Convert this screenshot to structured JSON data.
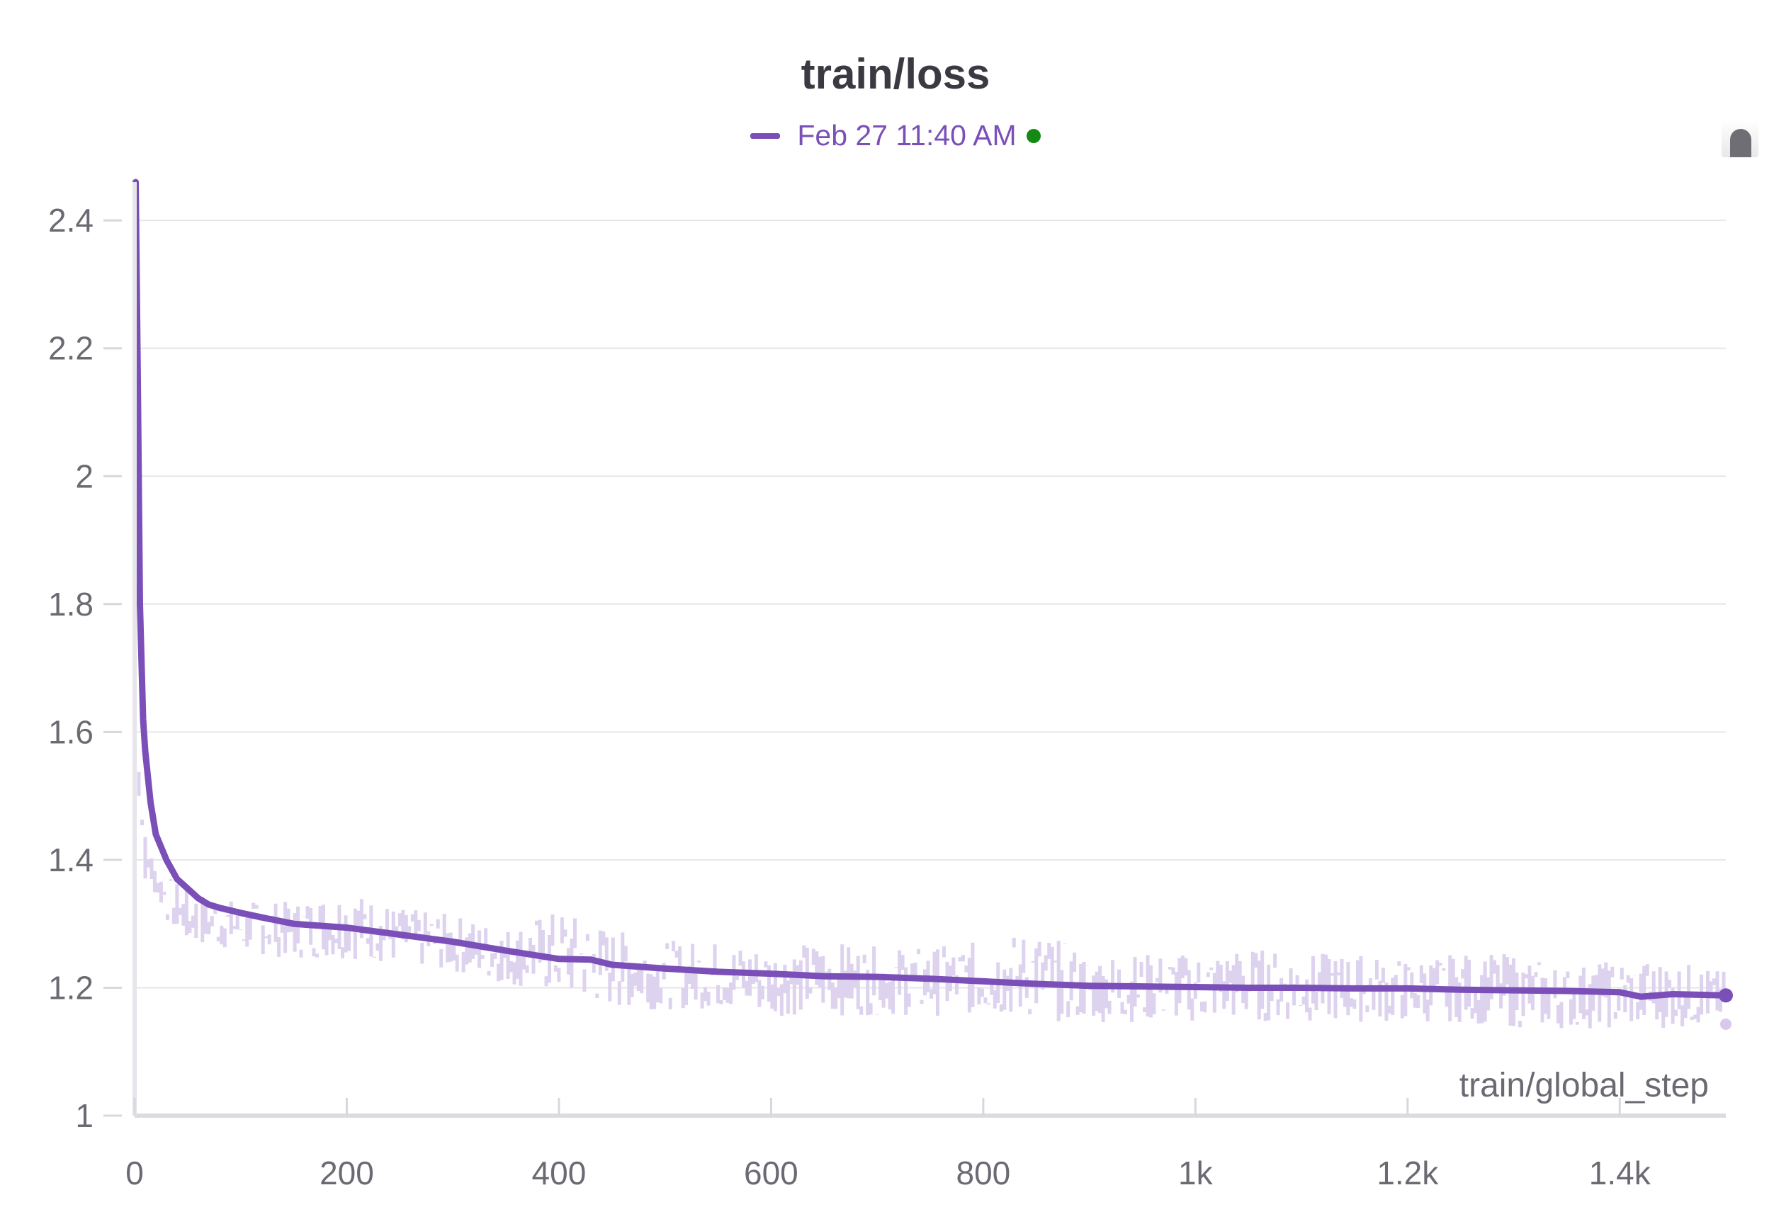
{
  "chart_data": {
    "type": "line",
    "title": "train/loss",
    "xlabel": "train/global_step",
    "ylabel": "",
    "xlim": [
      0,
      1500
    ],
    "ylim": [
      1.0,
      2.46
    ],
    "x_ticks": [
      0,
      200,
      400,
      600,
      800,
      1000,
      1200,
      1400
    ],
    "x_tick_labels": [
      "0",
      "200",
      "400",
      "600",
      "800",
      "1k",
      "1.2k",
      "1.4k"
    ],
    "y_ticks": [
      1.0,
      1.2,
      1.4,
      1.6,
      1.8,
      2.0,
      2.2,
      2.4
    ],
    "y_tick_labels": [
      "1",
      "1.2",
      "1.4",
      "1.6",
      "1.8",
      "2",
      "2.2",
      "2.4"
    ],
    "grid": true,
    "legend": "top-center",
    "series": [
      {
        "name": "Feb 27 11:40 AM",
        "color": "#7b4fb8",
        "raw_color": "#ddd3ee",
        "status_color": "#138a13",
        "smoothed": {
          "x": [
            1,
            3,
            5,
            8,
            10,
            15,
            20,
            25,
            30,
            40,
            50,
            60,
            70,
            80,
            100,
            120,
            150,
            200,
            250,
            300,
            350,
            400,
            430,
            450,
            500,
            550,
            600,
            650,
            700,
            750,
            800,
            850,
            900,
            950,
            1000,
            1050,
            1100,
            1150,
            1200,
            1250,
            1300,
            1350,
            1400,
            1420,
            1450,
            1500
          ],
          "y": [
            2.46,
            2.15,
            1.8,
            1.62,
            1.57,
            1.49,
            1.44,
            1.42,
            1.4,
            1.37,
            1.355,
            1.34,
            1.33,
            1.325,
            1.317,
            1.31,
            1.3,
            1.294,
            1.283,
            1.272,
            1.258,
            1.245,
            1.244,
            1.236,
            1.23,
            1.225,
            1.222,
            1.218,
            1.217,
            1.214,
            1.21,
            1.206,
            1.203,
            1.202,
            1.201,
            1.2,
            1.2,
            1.199,
            1.199,
            1.197,
            1.196,
            1.195,
            1.193,
            1.186,
            1.19,
            1.188
          ]
        },
        "raw_envelope": {
          "x": [
            1,
            5,
            10,
            20,
            30,
            40,
            50,
            70,
            100,
            150,
            200,
            250,
            300,
            350,
            400,
            450,
            500,
            550,
            600,
            650,
            700,
            750,
            800,
            850,
            900,
            950,
            1000,
            1050,
            1100,
            1150,
            1200,
            1250,
            1300,
            1350,
            1400,
            1450,
            1500
          ],
          "low": [
            1.6,
            1.4,
            1.36,
            1.34,
            1.3,
            1.28,
            1.26,
            1.26,
            1.25,
            1.24,
            1.24,
            1.23,
            1.22,
            1.2,
            1.18,
            1.16,
            1.16,
            1.16,
            1.15,
            1.15,
            1.15,
            1.15,
            1.15,
            1.14,
            1.14,
            1.14,
            1.14,
            1.14,
            1.14,
            1.14,
            1.14,
            1.14,
            1.13,
            1.13,
            1.13,
            1.13,
            1.14
          ],
          "high": [
            2.3,
            1.6,
            1.45,
            1.4,
            1.38,
            1.37,
            1.36,
            1.35,
            1.34,
            1.34,
            1.36,
            1.33,
            1.32,
            1.3,
            1.33,
            1.3,
            1.28,
            1.28,
            1.27,
            1.28,
            1.27,
            1.27,
            1.28,
            1.3,
            1.26,
            1.26,
            1.26,
            1.27,
            1.26,
            1.26,
            1.25,
            1.26,
            1.26,
            1.24,
            1.25,
            1.25,
            1.23
          ]
        },
        "last_raw_value": 1.143,
        "last_smoothed_value": 1.188
      }
    ]
  }
}
